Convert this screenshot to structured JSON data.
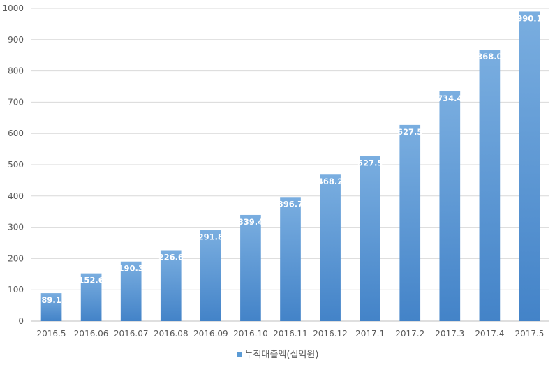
{
  "chart_data": {
    "type": "bar",
    "categories": [
      "2016.5",
      "2016.06",
      "2016.07",
      "2016.08",
      "2016.09",
      "2016.10",
      "2016.11",
      "2016.12",
      "2017.1",
      "2017.2",
      "2017.3",
      "2017.4",
      "2017.5"
    ],
    "series": [
      {
        "name": "누적대출액(십억원)",
        "values": [
          89.1,
          152.6,
          190.3,
          226.6,
          291.8,
          339.4,
          396.7,
          468.2,
          527.5,
          627.5,
          734.4,
          868.0,
          990.1
        ],
        "labels": [
          "89.1",
          "152.6",
          "190.3",
          "226.6",
          "291.8",
          "339.4",
          "396.7",
          "468.2",
          "527.5",
          "627.5",
          "734.4",
          "868.0",
          "990.1"
        ]
      }
    ],
    "yticks": [
      "0",
      "100",
      "200",
      "300",
      "400",
      "500",
      "600",
      "700",
      "800",
      "900",
      "1000"
    ],
    "ylim": [
      0,
      1000
    ],
    "grid": true,
    "legend_position": "bottom",
    "colors": {
      "bar_top": "#7aaee0",
      "bar_bottom": "#4383c8",
      "legend": "#5b9bd5",
      "grid": "#d9d9d9",
      "axis": "#bfbfbf",
      "label_text": "#ffffff",
      "tick_text": "#595959"
    }
  }
}
